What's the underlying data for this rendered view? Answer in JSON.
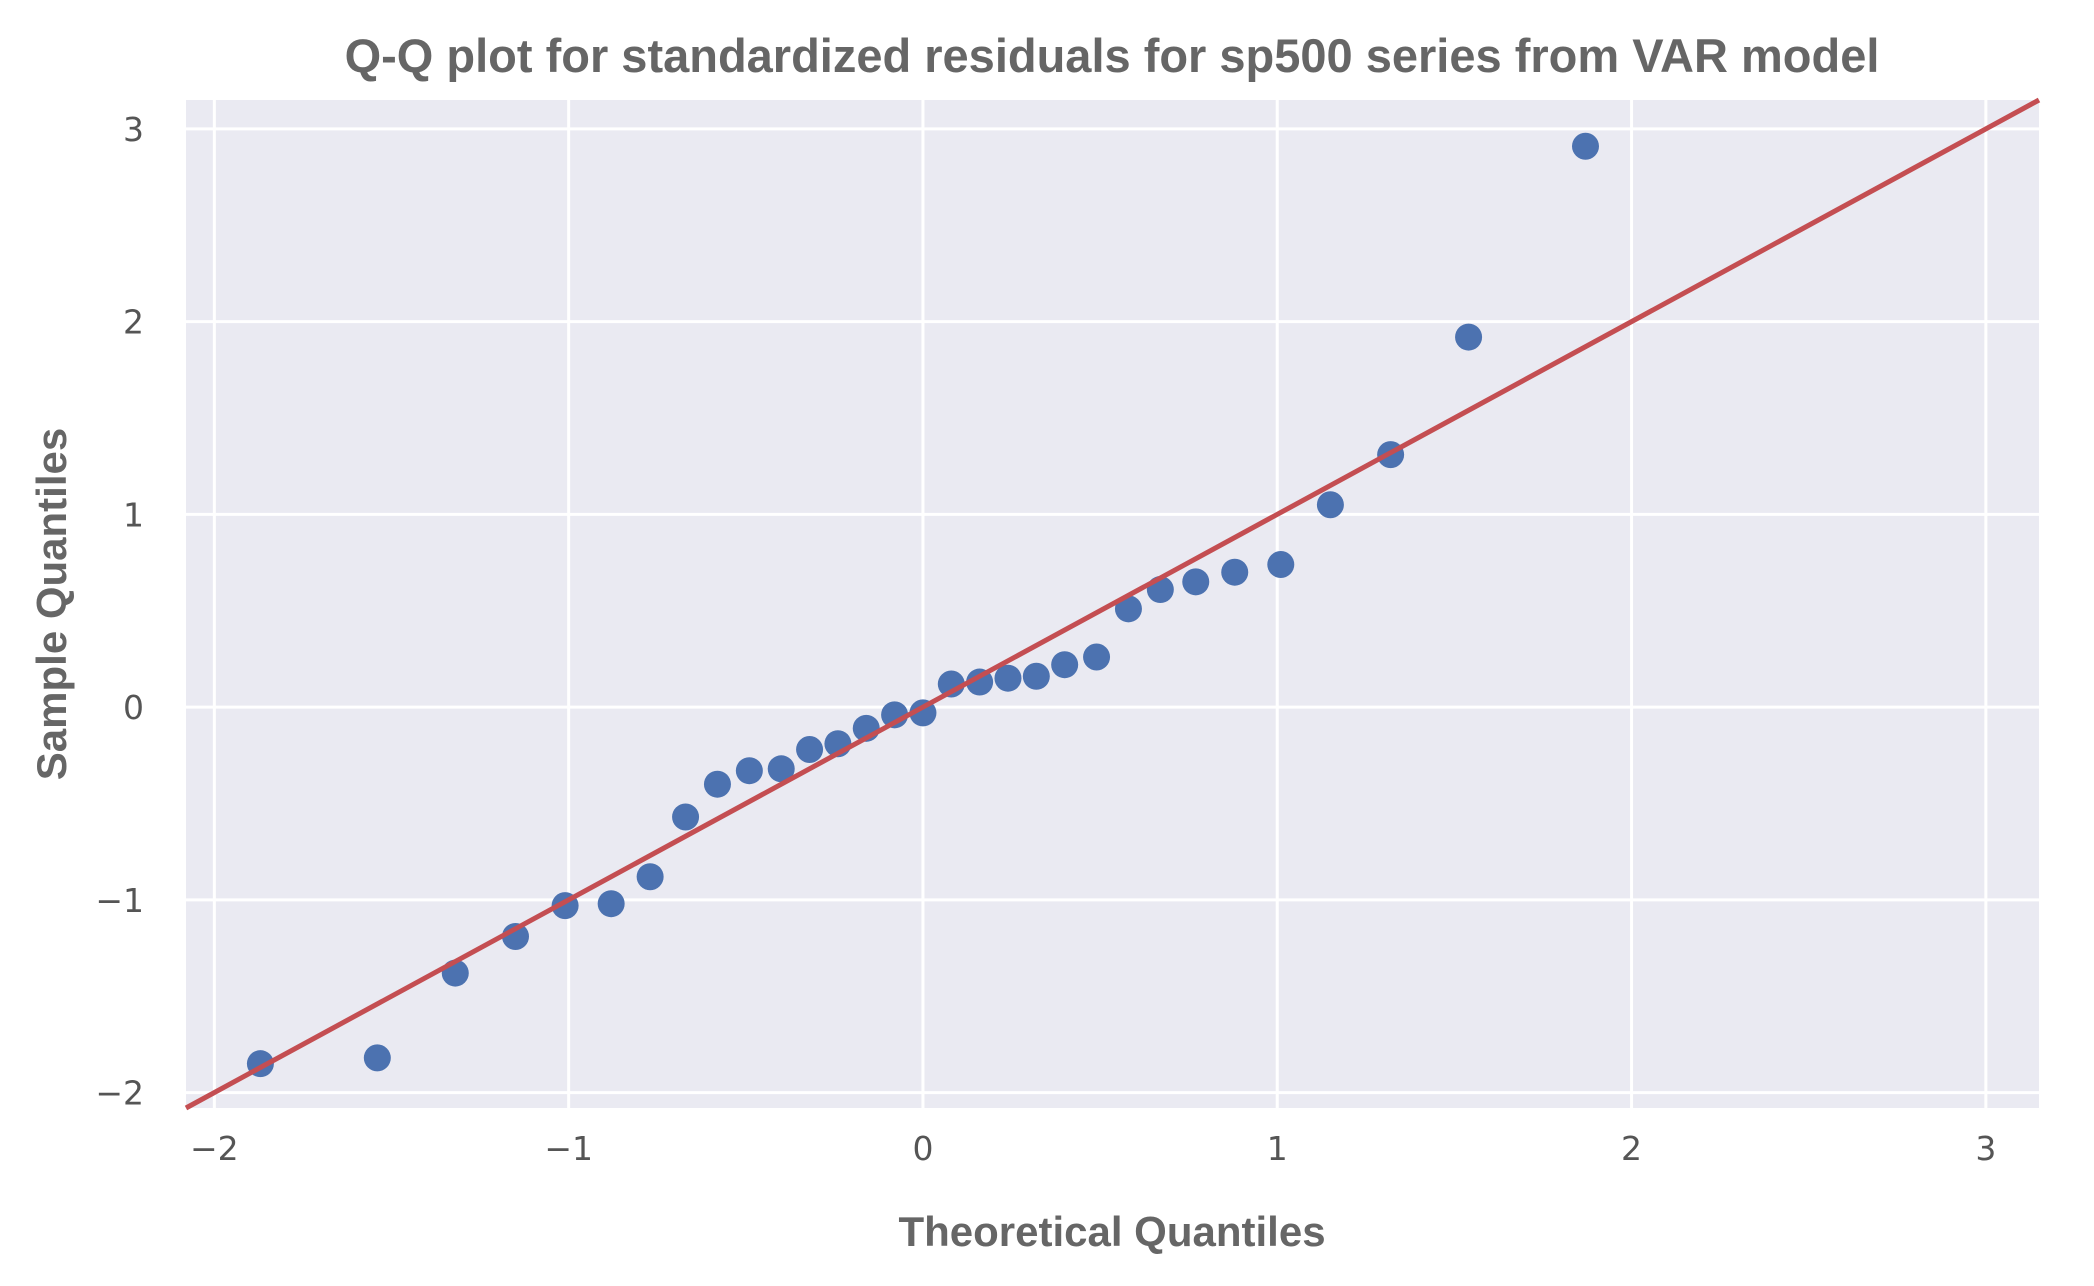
{
  "chart_data": {
    "type": "scatter",
    "title": "Q-Q plot for standardized residuals for sp500 series from VAR model",
    "xlabel": "Theoretical Quantiles",
    "ylabel": "Sample Quantiles",
    "xlim": [
      -2.08,
      3.15
    ],
    "ylim": [
      -2.08,
      3.15
    ],
    "x_ticks": [
      -2,
      -1,
      0,
      1,
      2,
      3
    ],
    "x_tick_labels": [
      "−2",
      "−1",
      "0",
      "1",
      "2",
      "3"
    ],
    "y_ticks": [
      -2,
      -1,
      0,
      1,
      2,
      3
    ],
    "y_tick_labels": [
      "−2",
      "−1",
      "0",
      "1",
      "2",
      "3"
    ],
    "grid": true,
    "background": "#eaeaf2",
    "colors": {
      "points": "#4c72b0",
      "reference_line": "#c44e52"
    },
    "reference_line": {
      "slope": 1,
      "intercept": 0
    },
    "series": [
      {
        "x": [
          -1.87,
          -1.54,
          -1.32,
          -1.15,
          -1.01,
          -0.88,
          -0.77,
          -0.67,
          -0.58,
          -0.49,
          -0.4,
          -0.32,
          -0.24,
          -0.16,
          -0.08,
          0.0,
          0.08,
          0.16,
          0.24,
          0.32,
          0.4,
          0.49,
          0.58,
          0.67,
          0.77,
          0.88,
          1.01,
          1.15,
          1.32,
          1.54,
          1.87
        ],
        "y": [
          -1.85,
          -1.82,
          -1.38,
          -1.19,
          -1.03,
          -1.02,
          -0.88,
          -0.57,
          -0.4,
          -0.33,
          -0.32,
          -0.22,
          -0.19,
          -0.11,
          -0.04,
          -0.03,
          0.12,
          0.13,
          0.15,
          0.16,
          0.22,
          0.26,
          0.51,
          0.61,
          0.65,
          0.7,
          0.74,
          1.05,
          1.31,
          1.92,
          2.91
        ]
      }
    ]
  }
}
